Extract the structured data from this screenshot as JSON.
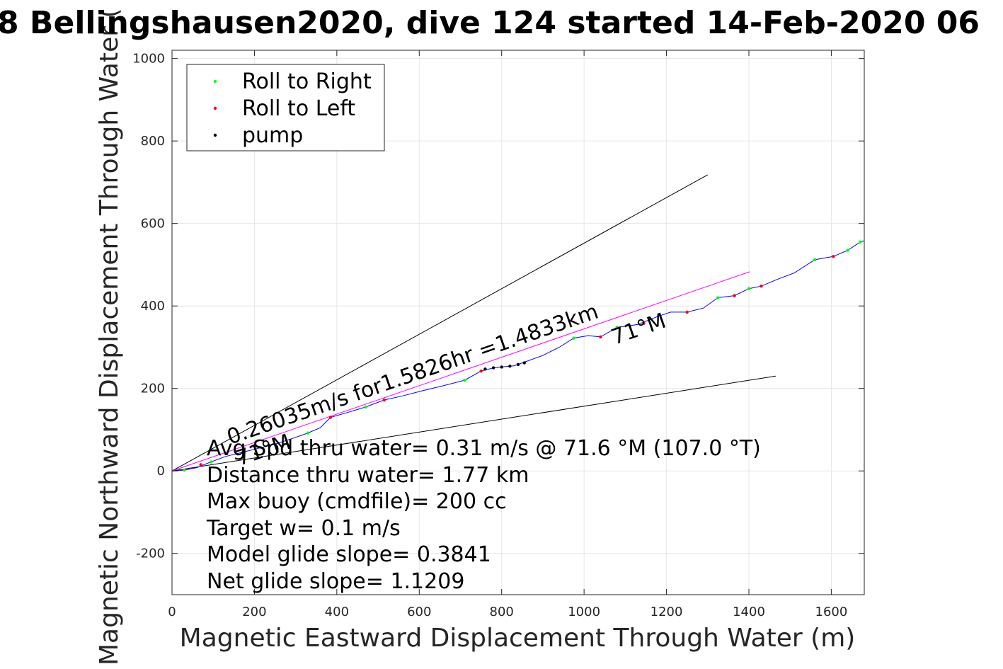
{
  "chart_data": {
    "type": "scatter",
    "title": "8 Bellingshausen2020, dive 124 started 14-Feb-2020 06",
    "xlabel": "Magnetic Eastward Displacement Through Water (m)",
    "ylabel": "Magnetic Northward Displacement Through Water (",
    "xlim": [
      0,
      1680
    ],
    "ylim": [
      -300,
      1020
    ],
    "xticks": [
      0,
      200,
      400,
      600,
      800,
      1000,
      1200,
      1400,
      1600
    ],
    "yticks": [
      -200,
      0,
      200,
      400,
      600,
      800,
      1000
    ],
    "grid": true,
    "legend": {
      "position": "top-left",
      "entries": [
        {
          "label": "Roll to Right",
          "color": "#00ff00"
        },
        {
          "label": "Roll to Left",
          "color": "#ff0000"
        },
        {
          "label": "pump",
          "color": "#000000"
        }
      ]
    },
    "track": {
      "color": "#0000ff",
      "points": [
        [
          0,
          0
        ],
        [
          30,
          2
        ],
        [
          60,
          8
        ],
        [
          95,
          22
        ],
        [
          130,
          35
        ],
        [
          170,
          45
        ],
        [
          210,
          55
        ],
        [
          250,
          65
        ],
        [
          290,
          78
        ],
        [
          330,
          92
        ],
        [
          360,
          105
        ],
        [
          385,
          130
        ],
        [
          420,
          140
        ],
        [
          470,
          155
        ],
        [
          515,
          172
        ],
        [
          560,
          182
        ],
        [
          610,
          195
        ],
        [
          660,
          207
        ],
        [
          710,
          220
        ],
        [
          750,
          242
        ],
        [
          780,
          250
        ],
        [
          810,
          253
        ],
        [
          830,
          255
        ],
        [
          850,
          262
        ],
        [
          900,
          280
        ],
        [
          940,
          300
        ],
        [
          975,
          322
        ],
        [
          1010,
          328
        ],
        [
          1040,
          325
        ],
        [
          1080,
          348
        ],
        [
          1130,
          355
        ],
        [
          1180,
          375
        ],
        [
          1210,
          385
        ],
        [
          1250,
          385
        ],
        [
          1290,
          395
        ],
        [
          1325,
          420
        ],
        [
          1365,
          425
        ],
        [
          1400,
          442
        ],
        [
          1430,
          448
        ],
        [
          1470,
          465
        ],
        [
          1510,
          480
        ],
        [
          1560,
          512
        ],
        [
          1605,
          520
        ],
        [
          1640,
          535
        ],
        [
          1670,
          555
        ],
        [
          1680,
          558
        ]
      ]
    },
    "roll_right_points": [
      [
        30,
        2
      ],
      [
        95,
        22
      ],
      [
        330,
        92
      ],
      [
        470,
        155
      ],
      [
        710,
        220
      ],
      [
        975,
        322
      ],
      [
        1080,
        348
      ],
      [
        1325,
        420
      ],
      [
        1400,
        442
      ],
      [
        1560,
        512
      ],
      [
        1640,
        535
      ],
      [
        1670,
        555
      ]
    ],
    "roll_left_points": [
      [
        70,
        15
      ],
      [
        385,
        130
      ],
      [
        515,
        172
      ],
      [
        750,
        242
      ],
      [
        1040,
        325
      ],
      [
        1145,
        358
      ],
      [
        1250,
        385
      ],
      [
        1365,
        425
      ],
      [
        1430,
        448
      ],
      [
        1605,
        520
      ]
    ],
    "pump_points": [
      [
        760,
        247
      ],
      [
        780,
        250
      ],
      [
        800,
        252
      ],
      [
        820,
        254
      ],
      [
        840,
        258
      ],
      [
        855,
        262
      ]
    ],
    "bearing_lines": [
      {
        "label": "",
        "color": "#000000",
        "end": [
          1300,
          718
        ]
      },
      {
        "label": "71°M",
        "color": "#000000",
        "end": [
          1465,
          230
        ]
      },
      {
        "label": "0.26035m/s for1.5826hr =1.4833km",
        "color": "#ff00ff",
        "end": [
          1402,
          483
        ]
      }
    ],
    "annotations": {
      "bearing_short": "71°M",
      "bearing_long": "71°M",
      "speed_line": "0.26035m/s for1.5826hr =1.4833km",
      "stats": [
        "Avg Spd thru water=  0.31 m/s @  71.6 °M (107.0 °T)",
        "Distance thru water=  1.77 km",
        "Max buoy (cmdfile)= 200 cc",
        "Target w= 0.1 m/s",
        "Model glide slope= 0.3841",
        "Net glide slope= 1.1209"
      ]
    }
  }
}
